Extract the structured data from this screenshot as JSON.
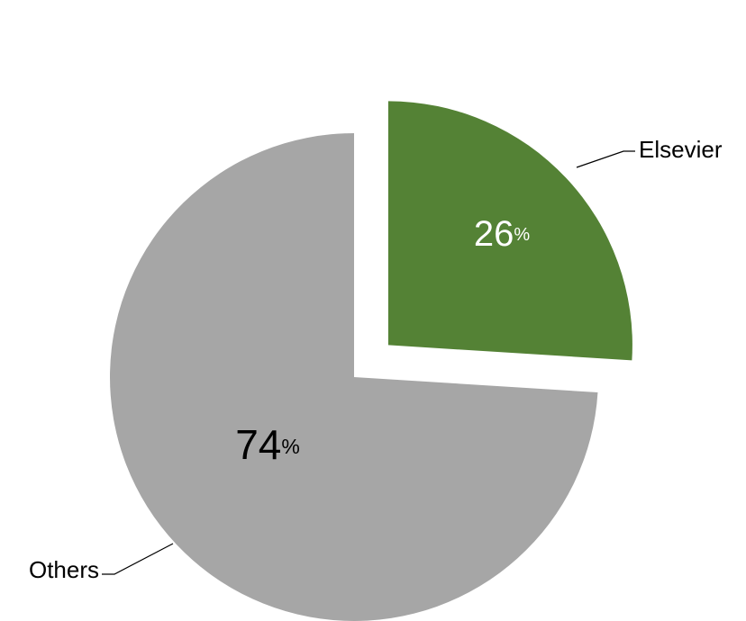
{
  "chart_data": {
    "type": "pie",
    "title": "",
    "slices": [
      {
        "label": "Elsevier",
        "value": 26,
        "value_text": "26",
        "unit": "%",
        "color": "#548235",
        "value_color": "#ffffff",
        "exploded": true
      },
      {
        "label": "Others",
        "value": 74,
        "value_text": "74",
        "unit": "%",
        "color": "#a6a6a6",
        "value_color": "#000000",
        "exploded": false
      }
    ],
    "start_angle_deg": 0,
    "direction": "clockwise",
    "leader_color": "#000000"
  }
}
